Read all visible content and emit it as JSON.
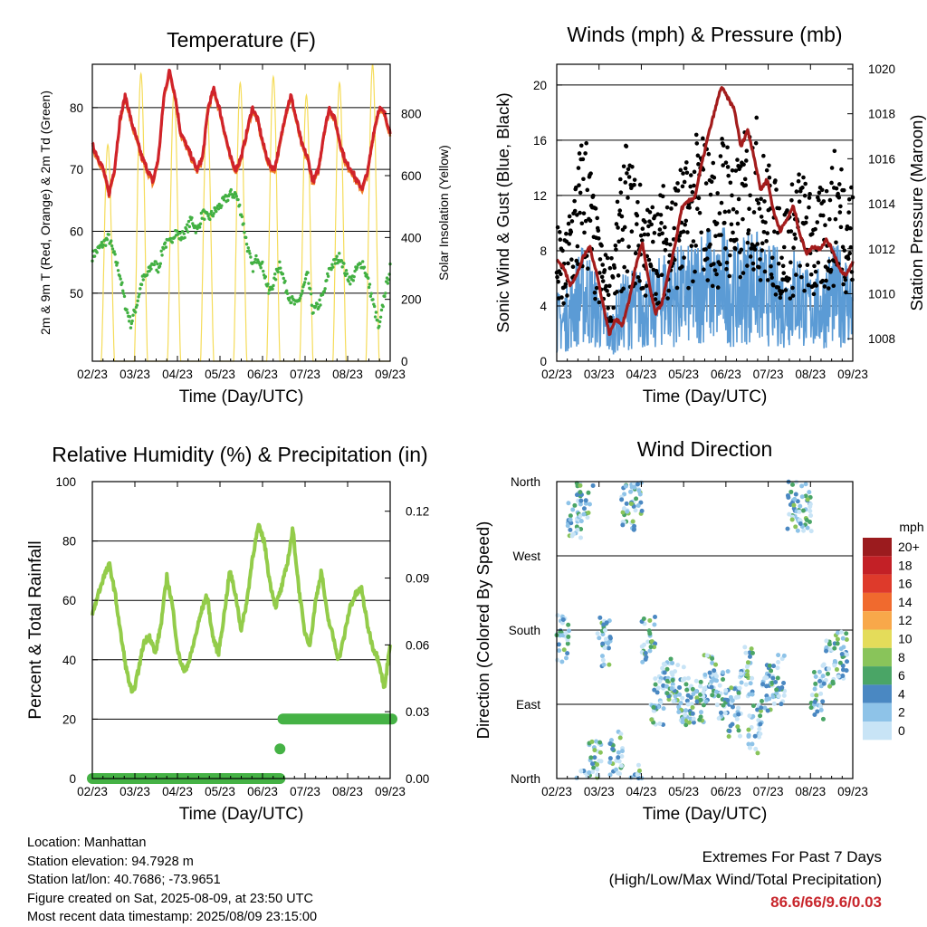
{
  "x_ticks": [
    "02/23",
    "03/23",
    "04/23",
    "05/23",
    "06/23",
    "07/23",
    "08/23",
    "09/23"
  ],
  "x_label": "Time (Day/UTC)",
  "colors": {
    "temp_red": "#d0232a",
    "temp_orange": "#f07a24",
    "dew_green": "#42b042",
    "solar_yellow": "#f5dc5a",
    "gust_black": "#000000",
    "wind_blue": "#5b9bd5",
    "pressure_maroon": "#a31c1c",
    "rh_green": "#93cc4a",
    "precip_green": "#45b245",
    "highlight_red": "#c8262c"
  },
  "chart_data": [
    {
      "id": "temperature",
      "type": "line",
      "title": "Temperature (F)",
      "xlabel": "Time (Day/UTC)",
      "ylabel": "2m & 9m T (Red, Orange) & 2m Td (Green)",
      "ylabel_right": "Solar Insolation (Yellow)",
      "ylim": [
        39,
        87
      ],
      "ylim_right": [
        0,
        960
      ],
      "yticks": [
        50,
        60,
        70,
        80
      ],
      "yticks_right": [
        0,
        200,
        400,
        600,
        800
      ],
      "series": [
        {
          "key": "temp",
          "color": "#d0232a",
          "values": [
            74,
            72,
            70,
            66,
            70,
            78,
            82,
            78,
            75,
            72,
            70,
            68,
            72,
            82,
            86,
            82,
            76,
            74,
            72,
            70,
            72,
            80,
            83,
            80,
            76,
            72,
            70,
            72,
            76,
            80,
            78,
            74,
            71,
            70,
            74,
            79,
            82,
            78,
            74,
            72,
            68,
            70,
            76,
            80,
            78,
            74,
            71,
            70,
            68,
            67,
            70,
            76,
            80,
            79,
            76
          ]
        },
        {
          "key": "dewpoint",
          "color": "#42b042",
          "values": [
            56,
            57,
            58,
            59,
            56,
            53,
            48,
            45,
            48,
            52,
            53,
            55,
            54,
            58,
            58,
            60,
            59,
            60,
            62,
            60,
            63,
            62,
            63,
            64,
            65,
            66,
            66,
            63,
            58,
            54,
            56,
            54,
            50,
            52,
            55,
            51,
            49,
            48,
            50,
            53,
            47,
            48,
            50,
            54,
            55,
            56,
            53,
            52,
            54,
            55,
            52,
            48,
            44,
            50,
            54
          ]
        },
        {
          "key": "solar",
          "color": "#f5dc5a",
          "axis": "right",
          "peaks": [
            700,
            930,
            870,
            820,
            900,
            920,
            860,
            900,
            960
          ]
        }
      ]
    },
    {
      "id": "winds",
      "type": "scatter",
      "title": "Winds (mph) & Pressure (mb)",
      "xlabel": "Time (Day/UTC)",
      "ylabel": "Sonic Wind & Gust (Blue, Black)",
      "ylabel_right": "Station Pressure (Maroon)",
      "ylim": [
        0,
        21.5
      ],
      "ylim_right": [
        1007,
        1020.2
      ],
      "yticks": [
        0,
        4,
        8,
        12,
        16,
        20
      ],
      "yticks_right": [
        1008,
        1010,
        1012,
        1014,
        1016,
        1018,
        1020
      ],
      "series": [
        {
          "key": "gust",
          "color": "#000000",
          "levels": [
            7,
            6,
            9,
            11,
            12,
            8,
            6,
            5,
            8,
            11,
            10,
            9,
            8,
            8,
            9,
            9,
            10,
            10,
            11,
            12,
            11,
            10,
            12,
            11,
            10,
            12,
            13,
            11,
            10,
            9,
            8,
            9,
            10,
            9,
            8,
            9,
            10,
            11,
            10,
            9
          ]
        },
        {
          "key": "wind",
          "color": "#5b9bd5",
          "levels": [
            3,
            3,
            4,
            5,
            5,
            4,
            3,
            2,
            3,
            4,
            4,
            4,
            4,
            4,
            5,
            5,
            5,
            5,
            5,
            6,
            6,
            5,
            6,
            5,
            5,
            6,
            6,
            5,
            5,
            5,
            4,
            5,
            5,
            4,
            4,
            4,
            5,
            5,
            5,
            4
          ]
        },
        {
          "key": "pressure",
          "color": "#a31c1c",
          "axis": "right",
          "values": [
            1011.5,
            1011.2,
            1010.4,
            1010.8,
            1011.6,
            1012.1,
            1011.0,
            1009.6,
            1008.2,
            1008.9,
            1008.6,
            1009.7,
            1011.2,
            1012.3,
            1010.5,
            1009.1,
            1009.6,
            1010.9,
            1012.2,
            1013.8,
            1014.1,
            1014.3,
            1015.7,
            1017.0,
            1018.1,
            1019.2,
            1018.7,
            1018.2,
            1016.5,
            1017.3,
            1016.1,
            1014.6,
            1015.1,
            1013.6,
            1012.8,
            1013.3,
            1013.9,
            1012.6,
            1011.8,
            1012.1,
            1012.0,
            1012.4,
            1011.9,
            1011.1,
            1010.8,
            1011.4
          ]
        }
      ]
    },
    {
      "id": "humidity",
      "type": "line",
      "title": "Relative Humidity (%) & Precipitation (in)",
      "xlabel": "Time (Day/UTC)",
      "ylabel": "Percent & Total Rainfall",
      "ylim": [
        0,
        100
      ],
      "ylim_right": [
        0,
        0.1333
      ],
      "yticks": [
        0,
        20,
        40,
        60,
        80,
        100
      ],
      "yticks_right": [
        "0.00",
        "0.03",
        "0.06",
        "0.09",
        "0.12"
      ],
      "series": [
        {
          "key": "rh",
          "color": "#93cc4a",
          "values": [
            55,
            62,
            68,
            72,
            62,
            48,
            36,
            28,
            36,
            46,
            48,
            42,
            52,
            68,
            58,
            42,
            36,
            40,
            48,
            56,
            62,
            48,
            42,
            55,
            70,
            62,
            50,
            60,
            75,
            85,
            80,
            66,
            58,
            64,
            72,
            84,
            65,
            50,
            45,
            60,
            70,
            55,
            48,
            40,
            48,
            58,
            62,
            64,
            52,
            44,
            40,
            30,
            46
          ]
        },
        {
          "key": "precip",
          "color": "#45b245",
          "axis": "right",
          "points": [
            [
              0,
              0
            ],
            [
              0.63,
              0
            ],
            [
              0.63,
              0.0133
            ],
            [
              0.64,
              0.0267
            ],
            [
              1,
              0.0267
            ]
          ]
        }
      ]
    },
    {
      "id": "direction",
      "type": "scatter",
      "title": "Wind Direction",
      "xlabel": "Time (Day/UTC)",
      "ylabel": "Direction (Colored By Speed)",
      "yticks": [
        "North",
        "East",
        "South",
        "West",
        "North"
      ],
      "legend": {
        "title": "mph",
        "labels": [
          "20+",
          "18",
          "16",
          "14",
          "12",
          "10",
          "8",
          "6",
          "4",
          "2",
          "0"
        ],
        "colors": [
          "#9b1b1e",
          "#c32026",
          "#de3a2b",
          "#f06a2e",
          "#f8a84a",
          "#e4dc5a",
          "#89c45a",
          "#4aa566",
          "#4a88c2",
          "#8ec3e8",
          "#c8e4f6"
        ]
      },
      "series": [
        {
          "key": "dir_clusters",
          "values": [
            [
              0.02,
              170
            ],
            [
              0.06,
              320
            ],
            [
              0.09,
              340
            ],
            [
              0.13,
              20
            ],
            [
              0.16,
              165
            ],
            [
              0.2,
              30
            ],
            [
              0.24,
              330
            ],
            [
              0.27,
              350
            ],
            [
              0.31,
              170
            ],
            [
              0.34,
              95
            ],
            [
              0.37,
              115
            ],
            [
              0.41,
              110
            ],
            [
              0.44,
              95
            ],
            [
              0.48,
              95
            ],
            [
              0.52,
              120
            ],
            [
              0.56,
              100
            ],
            [
              0.6,
              80
            ],
            [
              0.64,
              130
            ],
            [
              0.67,
              60
            ],
            [
              0.71,
              110
            ],
            [
              0.75,
              120
            ],
            [
              0.8,
              330
            ],
            [
              0.84,
              330
            ],
            [
              0.88,
              100
            ],
            [
              0.92,
              140
            ],
            [
              0.96,
              150
            ]
          ]
        }
      ]
    }
  ],
  "footer": {
    "location": "Location: Manhattan",
    "elevation": "Station elevation: 94.7928 m",
    "latlon": "Station lat/lon: 40.7686; -73.9651",
    "created": "Figure created on Sat, 2025-08-09, at 23:50 UTC",
    "recent": "Most recent data timestamp: 2025/08/09 23:15:00",
    "extremes_title": "Extremes For Past 7 Days",
    "extremes_sub": "(High/Low/Max Wind/Total Precipitation)",
    "extremes_values": "86.6/66/9.6/0.03"
  }
}
